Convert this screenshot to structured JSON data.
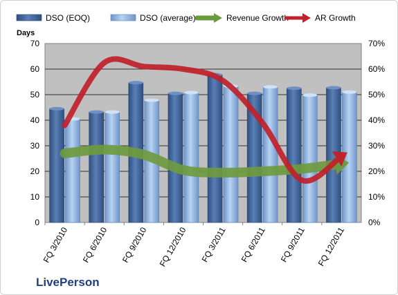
{
  "brand": {
    "name": "LivePerson"
  },
  "chart_data": {
    "type": "bar",
    "categories": [
      "FQ 3/2010",
      "FQ 6/2010",
      "FQ 9/2010",
      "FQ 12/2010",
      "FQ 3/2011",
      "FQ 6/2011",
      "FQ 9/2011",
      "FQ 12/2011"
    ],
    "series": [
      {
        "name": "DSO (EOQ)",
        "type": "bar",
        "axis": "left",
        "values": [
          44.5,
          43.2,
          54.7,
          50.5,
          57.8,
          50.5,
          52.5,
          52.7
        ],
        "color": "#4a6fa5"
      },
      {
        "name": "DSO (average)",
        "type": "bar",
        "axis": "left",
        "values": [
          40.5,
          43.2,
          47.8,
          50.8,
          53.3,
          53.0,
          49.8,
          51.0
        ],
        "color": "#8fb4e0"
      },
      {
        "name": "Revenue Growth",
        "type": "line-arrow",
        "axis": "right",
        "values": [
          0.27,
          0.285,
          0.265,
          0.205,
          0.195,
          0.2,
          0.21,
          0.23
        ],
        "color": "#6e9a3f"
      },
      {
        "name": "AR Growth",
        "type": "line-arrow",
        "axis": "right",
        "values": [
          0.38,
          0.625,
          0.61,
          0.6,
          0.555,
          0.39,
          0.165,
          0.26
        ],
        "color": "#c0212b"
      }
    ],
    "ylabel": "Days",
    "ylim": [
      0,
      70
    ],
    "yticks": [
      0,
      10,
      20,
      30,
      40,
      50,
      60,
      70
    ],
    "y2lim": [
      0,
      0.7
    ],
    "y2ticks": [
      "0%",
      "10%",
      "20%",
      "30%",
      "40%",
      "50%",
      "60%",
      "70%"
    ],
    "grid": true,
    "legend_position": "top",
    "colors": {
      "plot_area": "#c0c0c0",
      "background": "#ffffff"
    }
  }
}
